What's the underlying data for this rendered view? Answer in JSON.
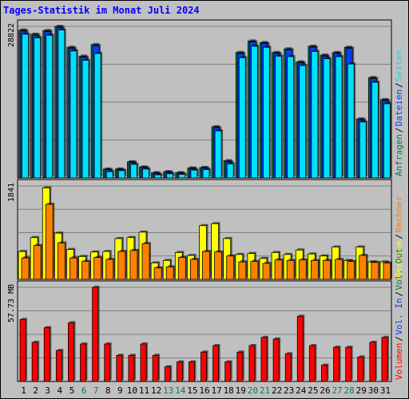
{
  "title": "Tages-Statistik im Monat Juli 2024",
  "colors": {
    "hits": "#008040",
    "files": "#0040ff",
    "pages": "#00e0ff",
    "visits": "#ffff00",
    "sites": "#ff8000",
    "kbytes": "#ff0000",
    "weekend_day": "#00805c",
    "weekday": "#000000",
    "background": "#c0c0c0"
  },
  "chart_data": [
    {
      "type": "bar",
      "name": "top",
      "ymax_label": "28822",
      "ylim": [
        0,
        29000
      ],
      "legend": [
        {
          "label": "Anfragen",
          "color": "#008040"
        },
        {
          "label": "Dateien",
          "color": "#0040ff"
        },
        {
          "label": "Seiten",
          "color": "#00e0ff"
        }
      ],
      "categories": [
        "1",
        "2",
        "3",
        "4",
        "5",
        "6",
        "7",
        "8",
        "9",
        "10",
        "11",
        "12",
        "13",
        "14",
        "15",
        "16",
        "17",
        "18",
        "19",
        "20",
        "21",
        "22",
        "23",
        "24",
        "25",
        "26",
        "27",
        "28",
        "29",
        "30",
        "31"
      ],
      "series": [
        {
          "name": "Anfragen",
          "values": [
            28300,
            27500,
            28200,
            29000,
            25000,
            23300,
            25500,
            1700,
            1700,
            3100,
            2100,
            1000,
            1200,
            1000,
            1900,
            2000,
            9800,
            3300,
            24000,
            26200,
            25900,
            24000,
            24700,
            22200,
            25200,
            23500,
            24000,
            25000,
            11300,
            19200,
            15000
          ]
        },
        {
          "name": "Dateien",
          "values": [
            28100,
            27300,
            28000,
            28800,
            24800,
            23100,
            25300,
            1600,
            1600,
            3000,
            2000,
            900,
            1100,
            900,
            1800,
            1900,
            9600,
            3100,
            23800,
            26000,
            25700,
            23800,
            24500,
            22000,
            25000,
            23300,
            23800,
            24800,
            11100,
            19000,
            14800
          ]
        },
        {
          "name": "Seiten",
          "values": [
            27500,
            26800,
            27300,
            28300,
            24300,
            22500,
            23800,
            1200,
            1400,
            2600,
            1700,
            600,
            800,
            700,
            1500,
            1600,
            9000,
            2700,
            23000,
            25200,
            25000,
            23300,
            23200,
            21500,
            24200,
            22800,
            23200,
            21800,
            10700,
            18300,
            14200
          ]
        }
      ]
    },
    {
      "type": "bar",
      "name": "middle",
      "ymax_label": "1841",
      "ylim": [
        0,
        1880
      ],
      "legend": [
        {
          "label": "Besuche",
          "color": "#ffff00"
        },
        {
          "label": "Rechner",
          "color": "#ff8000"
        }
      ],
      "categories": [
        "1",
        "2",
        "3",
        "4",
        "5",
        "6",
        "7",
        "8",
        "9",
        "10",
        "11",
        "12",
        "13",
        "14",
        "15",
        "16",
        "17",
        "18",
        "19",
        "20",
        "21",
        "22",
        "23",
        "24",
        "25",
        "26",
        "27",
        "28",
        "29",
        "30",
        "31"
      ],
      "series": [
        {
          "name": "Besuche",
          "values": [
            560,
            840,
            1841,
            930,
            600,
            460,
            550,
            560,
            820,
            840,
            950,
            330,
            380,
            540,
            480,
            1080,
            1120,
            820,
            500,
            520,
            420,
            540,
            500,
            590,
            510,
            470,
            650,
            380,
            650,
            350,
            350
          ]
        },
        {
          "name": "Rechner",
          "values": [
            430,
            680,
            1510,
            730,
            430,
            360,
            440,
            400,
            560,
            580,
            720,
            230,
            250,
            440,
            400,
            560,
            550,
            470,
            350,
            360,
            320,
            390,
            380,
            390,
            380,
            380,
            400,
            360,
            480,
            340,
            330
          ]
        }
      ]
    },
    {
      "type": "bar",
      "name": "bottom",
      "ymax_label": "57.73 MB",
      "ylim": [
        0,
        57.73
      ],
      "legend": [
        {
          "label": "Volumen",
          "color": "#ff0000"
        },
        {
          "label": "Vol. In",
          "color": "#0040ff"
        },
        {
          "label": "Vol. Out",
          "color": "#008040"
        }
      ],
      "categories": [
        "1",
        "2",
        "3",
        "4",
        "5",
        "6",
        "7",
        "8",
        "9",
        "10",
        "11",
        "12",
        "13",
        "14",
        "15",
        "16",
        "17",
        "18",
        "19",
        "20",
        "21",
        "22",
        "23",
        "24",
        "25",
        "26",
        "27",
        "28",
        "29",
        "30",
        "31"
      ],
      "series": [
        {
          "name": "Volumen",
          "values": [
            38,
            24,
            33,
            19,
            36,
            23,
            57.73,
            23,
            16,
            16,
            23,
            16,
            9,
            12,
            12,
            18,
            22,
            12,
            18,
            22,
            27,
            26,
            17,
            40,
            22,
            10,
            21,
            21,
            15,
            24,
            27
          ]
        }
      ]
    }
  ],
  "weekend_days": [
    "6",
    "7",
    "13",
    "14",
    "20",
    "21",
    "27",
    "28"
  ]
}
